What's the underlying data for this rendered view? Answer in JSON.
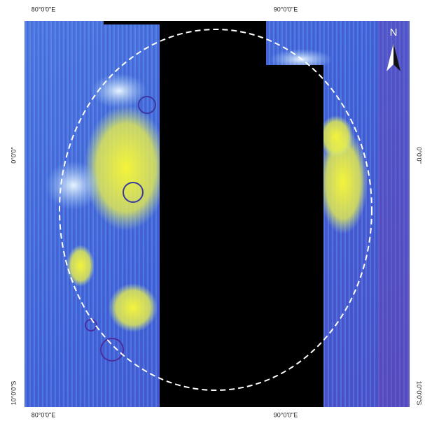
{
  "map": {
    "top_labels": [
      "80°0'0\"E",
      "90°0'0\"E"
    ],
    "bottom_labels": [
      "80°0'0\"E",
      "90°0'0\"E"
    ],
    "left_labels": [
      "0°0'0\"",
      "10°0'0\"S"
    ],
    "right_labels": [
      "0°0'0\"",
      "10°0'0\"S"
    ],
    "north_arrow": "N"
  }
}
